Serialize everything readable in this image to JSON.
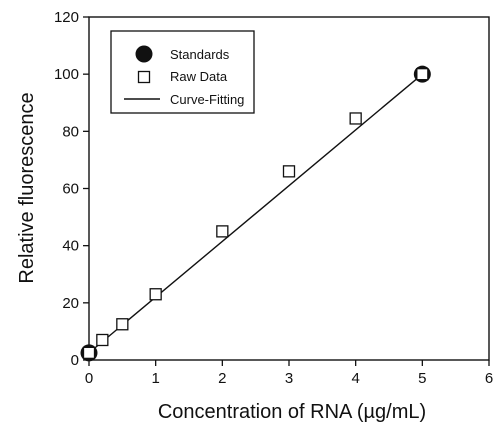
{
  "chart_data": {
    "type": "scatter",
    "title": "",
    "xlabel": "Concentration of RNA (µg/mL)",
    "ylabel": "Relative fluorescence",
    "xlim": [
      0,
      6
    ],
    "ylim": [
      0,
      120
    ],
    "xticks": [
      0,
      1,
      2,
      3,
      4,
      5,
      6
    ],
    "yticks": [
      0,
      20,
      40,
      60,
      80,
      100,
      120
    ],
    "xtick_labels": [
      "0",
      "1",
      "2",
      "3",
      "4",
      "5",
      "6"
    ],
    "ytick_labels": [
      "0",
      "20",
      "40",
      "60",
      "80",
      "100",
      "120"
    ],
    "grid": false,
    "legend_position": "top-left",
    "series": [
      {
        "name": "Standards",
        "marker": "filled-circle",
        "x": [
          0,
          5
        ],
        "y": [
          2.5,
          100
        ]
      },
      {
        "name": "Raw Data",
        "marker": "open-square",
        "x": [
          0,
          0.2,
          0.5,
          1,
          2,
          3,
          4,
          5
        ],
        "y": [
          2.5,
          7,
          12.5,
          23,
          45,
          66,
          84.5,
          100
        ]
      },
      {
        "name": "Curve-Fitting",
        "marker": "line",
        "x": [
          0,
          5
        ],
        "y": [
          2.5,
          100
        ]
      }
    ],
    "colors": {
      "axis": "#111111",
      "marker": "#111111",
      "marker_fill": "#ffffff"
    }
  }
}
